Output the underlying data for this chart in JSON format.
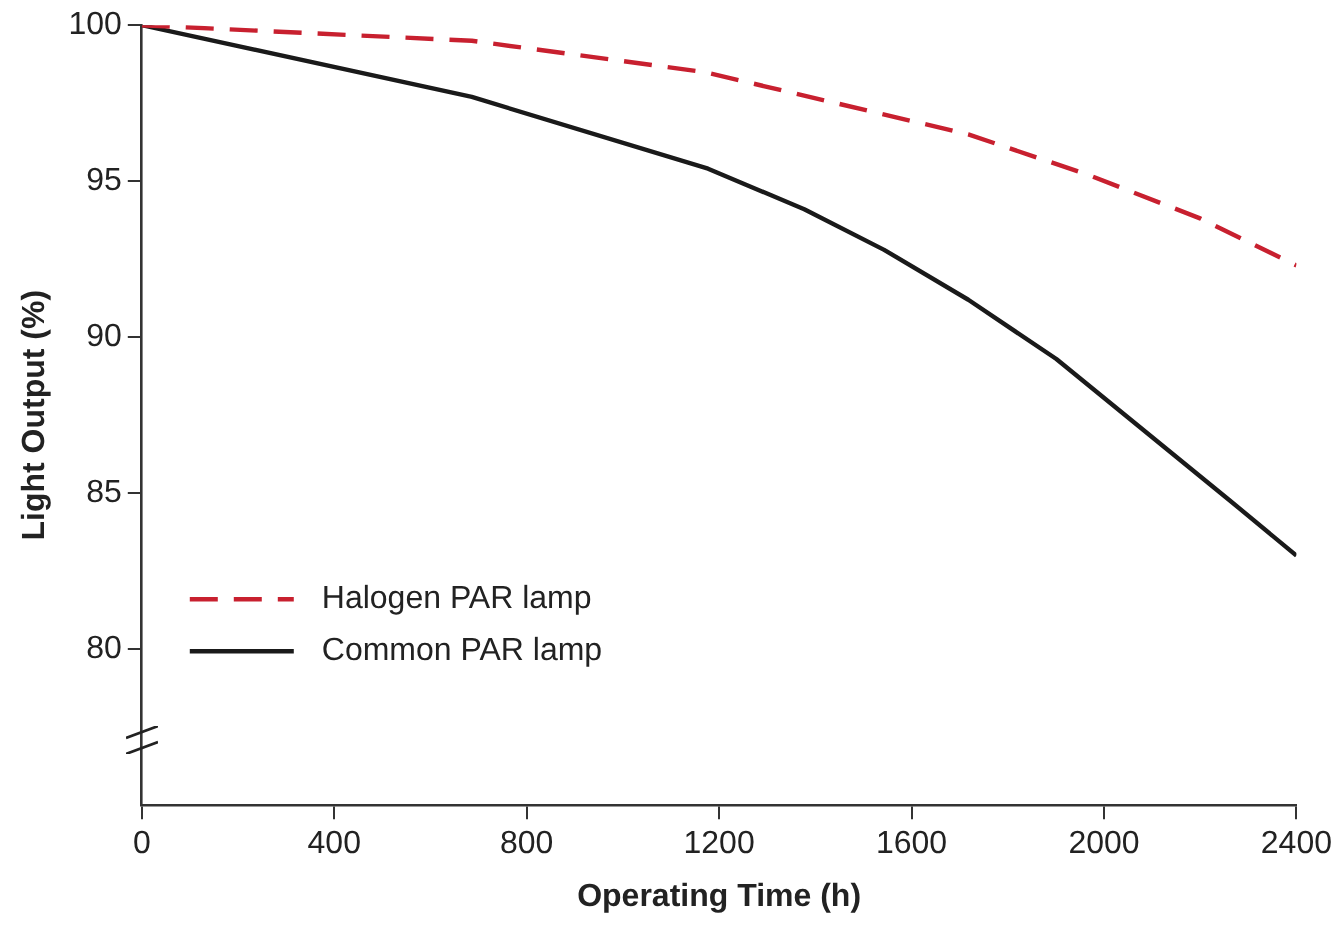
{
  "chart_data": {
    "type": "line",
    "xlabel": "Operating Time (h)",
    "ylabel": "Light Output (%)",
    "xlim": [
      0,
      2400
    ],
    "xticks": [
      0,
      400,
      800,
      1200,
      1600,
      2000,
      2400
    ],
    "ylim": [
      75,
      100
    ],
    "yticks": [
      80,
      85,
      90,
      95,
      100
    ],
    "grid": false,
    "legend": "bottom left",
    "marker": "none",
    "series": [
      {
        "name": "Halogen PAR lamp",
        "color": "#c8202f",
        "line_style": "dashed",
        "x": [
          0,
          686,
          1169,
          1718,
          1968,
          2201,
          2400
        ],
        "values": [
          100,
          99.5,
          98.5,
          96.5,
          95.2,
          93.8,
          92.3
        ]
      },
      {
        "name": "Common PAR lamp",
        "color": "#1a1a1a",
        "line_style": "solid",
        "x": [
          0,
          686,
          1177,
          1377,
          1543,
          1718,
          1901,
          2259,
          2400
        ],
        "values": [
          100,
          97.7,
          95.4,
          94.1,
          92.8,
          91.2,
          89.3,
          84.8,
          83.0
        ]
      }
    ]
  }
}
